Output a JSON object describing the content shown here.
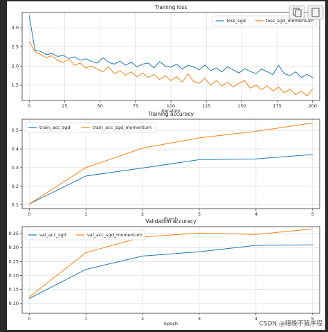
{
  "chart_data": [
    {
      "type": "line",
      "title": "Training loss",
      "xlabel": "Iteration",
      "x": [
        0,
        4,
        8,
        12,
        16,
        20,
        24,
        28,
        32,
        36,
        40,
        44,
        48,
        52,
        56,
        60,
        64,
        68,
        72,
        76,
        80,
        84,
        88,
        92,
        96,
        100,
        104,
        108,
        112,
        116,
        120,
        124,
        128,
        132,
        136,
        140,
        144,
        148,
        152,
        156,
        160,
        164,
        168,
        172,
        176,
        180,
        184,
        188,
        192,
        196,
        200
      ],
      "series": [
        {
          "name": "loss_sgd",
          "color": "#1f77b4",
          "values": [
            3.32,
            2.42,
            2.38,
            2.3,
            2.33,
            2.25,
            2.28,
            2.2,
            2.24,
            2.15,
            2.19,
            2.12,
            2.08,
            2.22,
            2.1,
            2.05,
            2.13,
            2.02,
            2.1,
            1.98,
            2.05,
            2.08,
            1.95,
            2.12,
            2.0,
            1.97,
            2.05,
            1.92,
            2.02,
            1.98,
            1.9,
            2.03,
            1.88,
            1.95,
            1.85,
            1.98,
            1.9,
            1.82,
            1.93,
            1.86,
            1.8,
            1.92,
            1.85,
            1.78,
            2.02,
            1.8,
            1.75,
            1.85,
            1.7,
            1.78,
            1.7
          ]
        },
        {
          "name": "loss_sgd_momentum",
          "color": "#ff7f0e",
          "values": [
            2.65,
            2.38,
            2.3,
            2.22,
            2.27,
            2.15,
            2.1,
            2.18,
            2.02,
            2.08,
            1.95,
            2.0,
            1.92,
            1.85,
            1.98,
            1.8,
            1.88,
            1.76,
            1.85,
            1.72,
            1.82,
            1.7,
            1.78,
            1.65,
            1.75,
            1.62,
            1.72,
            1.58,
            1.8,
            1.6,
            1.55,
            1.68,
            1.5,
            1.62,
            1.48,
            1.58,
            1.45,
            1.55,
            1.62,
            1.42,
            1.5,
            1.38,
            1.48,
            1.35,
            1.45,
            1.3,
            1.4,
            1.25,
            1.35,
            1.22,
            1.4
          ]
        }
      ],
      "xlim": [
        -5,
        205
      ],
      "xticks": [
        0,
        25,
        50,
        75,
        100,
        125,
        150,
        175,
        200
      ],
      "ylim": [
        1.1,
        3.4
      ],
      "yticks": [
        1.5,
        {
          "value": 2,
          "label": "2.0"
        },
        2.5,
        {
          "value": 3,
          "label": "3.0"
        }
      ],
      "grid": true,
      "legend": "upper right"
    },
    {
      "type": "line",
      "title": "Training accuracy",
      "xlabel": "Epoch",
      "x": [
        0,
        1,
        2,
        3,
        4,
        5
      ],
      "series": [
        {
          "name": "train_acc_sgd",
          "color": "#1f77b4",
          "values": [
            0.105,
            0.255,
            0.298,
            0.343,
            0.347,
            0.37
          ]
        },
        {
          "name": "train_acc_sgd_momentum",
          "color": "#ff7f0e",
          "values": [
            0.105,
            0.3,
            0.405,
            0.46,
            0.495,
            0.54
          ]
        }
      ],
      "xlim": [
        -0.125,
        5.125
      ],
      "xticks": [
        0,
        1,
        2,
        3,
        4,
        5
      ],
      "ylim": [
        0.08,
        0.56
      ],
      "yticks": [
        0.1,
        0.2,
        0.3,
        0.4,
        0.5
      ],
      "grid": true,
      "legend": "upper left"
    },
    {
      "type": "line",
      "title": "Validation accuracy",
      "xlabel": "Epoch",
      "x": [
        0,
        1,
        2,
        3,
        4,
        5
      ],
      "series": [
        {
          "name": "val_acc_sgd",
          "color": "#1f77b4",
          "values": [
            0.118,
            0.222,
            0.27,
            0.285,
            0.308,
            0.31
          ]
        },
        {
          "name": "val_acc_sgd_momentum",
          "color": "#ff7f0e",
          "values": [
            0.123,
            0.282,
            0.338,
            0.352,
            0.347,
            0.367
          ]
        }
      ],
      "xlim": [
        -0.125,
        5.125
      ],
      "xticks": [
        0,
        1,
        2,
        3,
        4,
        5
      ],
      "ylim": [
        0.065,
        0.375
      ],
      "yticks": [
        {
          "value": 0.1,
          "label": "0.10"
        },
        0.15,
        {
          "value": 0.2,
          "label": "0.20"
        },
        0.25,
        {
          "value": 0.3,
          "label": "0.30"
        },
        0.35
      ],
      "grid": true,
      "legend": "upper left"
    }
  ],
  "watermark": "CSDN @睡晚不猿序程"
}
